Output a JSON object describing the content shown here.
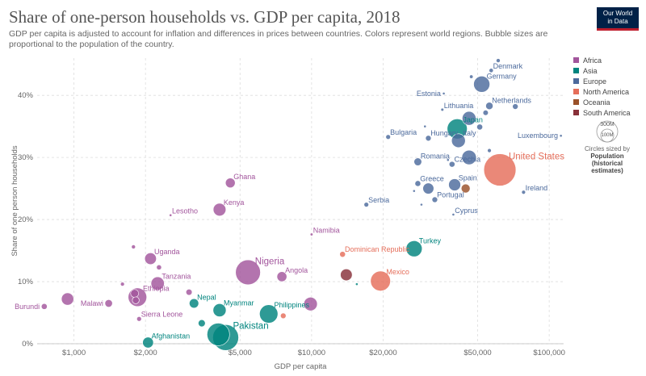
{
  "header": {
    "title": "Share of one-person households vs. GDP per capita, 2018",
    "subtitle": "GDP per capita is adjusted to account for inflation and differences in prices between countries. Colors represent world regions. Bubble sizes are proportional to the population of the country.",
    "logo_line1": "Our World",
    "logo_line2": "in Data"
  },
  "legend": {
    "items": [
      {
        "label": "Africa",
        "color": "#a2559c"
      },
      {
        "label": "Asia",
        "color": "#00847e"
      },
      {
        "label": "Europe",
        "color": "#4c6a9c"
      },
      {
        "label": "North America",
        "color": "#e56e5a"
      },
      {
        "label": "Oceania",
        "color": "#9a5129"
      },
      {
        "label": "South America",
        "color": "#883039"
      }
    ]
  },
  "size_legend": {
    "big": "300M",
    "small": "100M",
    "caption": "Circles sized by",
    "caption_bold1": "Population",
    "caption_bold2": "(historical estimates)"
  },
  "chart_data": {
    "type": "scatter",
    "title": "Share of one-person households vs. GDP per capita, 2018",
    "xlabel": "GDP per capita",
    "ylabel": "Share of one person households",
    "x_scale": "log",
    "xlim": [
      700,
      115000
    ],
    "ylim": [
      0,
      46
    ],
    "x_ticks": [
      1000,
      2000,
      5000,
      10000,
      20000,
      50000,
      100000
    ],
    "x_tick_labels": [
      "$1,000",
      "$2,000",
      "$5,000",
      "$10,000",
      "$20,000",
      "$50,000",
      "$100,000"
    ],
    "y_ticks": [
      0,
      10,
      20,
      30,
      40
    ],
    "y_tick_labels": [
      "0%",
      "10%",
      "20%",
      "30%",
      "40%"
    ],
    "points": [
      {
        "label": "Burundi",
        "region": "Africa",
        "x": 750,
        "y": 6.0,
        "pop": 11,
        "show": true,
        "anchor": "left"
      },
      {
        "label": "",
        "region": "Africa",
        "x": 940,
        "y": 7.2,
        "pop": 48,
        "show": false
      },
      {
        "label": "Malawi",
        "region": "Africa",
        "x": 1400,
        "y": 6.5,
        "pop": 18,
        "show": true,
        "anchor": "left"
      },
      {
        "label": "Ethiopia",
        "region": "Africa",
        "x": 1850,
        "y": 7.5,
        "pop": 109,
        "show": true,
        "anchor": "right"
      },
      {
        "label": "",
        "region": "Africa",
        "x": 1800,
        "y": 8.1,
        "pop": 20,
        "show": false
      },
      {
        "label": "",
        "region": "Africa",
        "x": 1820,
        "y": 7.0,
        "pop": 15,
        "show": false
      },
      {
        "label": "",
        "region": "Africa",
        "x": 1600,
        "y": 9.6,
        "pop": 5,
        "show": false
      },
      {
        "label": "Sierra Leone",
        "region": "Africa",
        "x": 1880,
        "y": 4.0,
        "pop": 7,
        "show": true,
        "anchor": "right"
      },
      {
        "label": "",
        "region": "Africa",
        "x": 1780,
        "y": 15.6,
        "pop": 5,
        "show": false
      },
      {
        "label": "Uganda",
        "region": "Africa",
        "x": 2100,
        "y": 13.7,
        "pop": 43,
        "show": true,
        "anchor": "right"
      },
      {
        "label": "",
        "region": "Africa",
        "x": 2280,
        "y": 12.3,
        "pop": 8,
        "show": false
      },
      {
        "label": "Tanzania",
        "region": "Africa",
        "x": 2250,
        "y": 9.7,
        "pop": 56,
        "show": true,
        "anchor": "right"
      },
      {
        "label": "",
        "region": "Africa",
        "x": 3050,
        "y": 8.3,
        "pop": 12,
        "show": false
      },
      {
        "label": "Lesotho",
        "region": "Africa",
        "x": 2550,
        "y": 20.7,
        "pop": 2,
        "show": true,
        "anchor": "right"
      },
      {
        "label": "Kenya",
        "region": "Africa",
        "x": 4100,
        "y": 21.6,
        "pop": 51,
        "show": true,
        "anchor": "right"
      },
      {
        "label": "Ghana",
        "region": "Africa",
        "x": 4550,
        "y": 25.9,
        "pop": 30,
        "show": true,
        "anchor": "right"
      },
      {
        "label": "Nigeria",
        "region": "Africa",
        "x": 5400,
        "y": 11.5,
        "pop": 196,
        "show": true,
        "anchor": "right-big"
      },
      {
        "label": "Angola",
        "region": "Africa",
        "x": 7500,
        "y": 10.8,
        "pop": 31,
        "show": true,
        "anchor": "right"
      },
      {
        "label": "",
        "region": "Africa",
        "x": 9900,
        "y": 6.4,
        "pop": 58,
        "show": false
      },
      {
        "label": "Namibia",
        "region": "Africa",
        "x": 10000,
        "y": 17.6,
        "pop": 2.5,
        "show": true,
        "anchor": "right"
      },
      {
        "label": "Afghanistan",
        "region": "Asia",
        "x": 2050,
        "y": 0.2,
        "pop": 37,
        "show": true,
        "anchor": "right"
      },
      {
        "label": "",
        "region": "Asia",
        "x": 3450,
        "y": 3.3,
        "pop": 16,
        "show": false
      },
      {
        "label": "Nepal",
        "region": "Asia",
        "x": 3200,
        "y": 6.5,
        "pop": 28,
        "show": true,
        "anchor": "right"
      },
      {
        "label": "Myanmar",
        "region": "Asia",
        "x": 4100,
        "y": 5.4,
        "pop": 54,
        "show": true,
        "anchor": "right"
      },
      {
        "label": "",
        "region": "Asia",
        "x": 4050,
        "y": 1.5,
        "pop": 161,
        "show": false
      },
      {
        "label": "Pakistan",
        "region": "Asia",
        "x": 4350,
        "y": 1.0,
        "pop": 212,
        "show": true,
        "anchor": "right-big"
      },
      {
        "label": "Philippines",
        "region": "Asia",
        "x": 6600,
        "y": 4.8,
        "pop": 107,
        "show": true,
        "anchor": "right"
      },
      {
        "label": "",
        "region": "Asia",
        "x": 15500,
        "y": 9.6,
        "pop": 1,
        "show": false
      },
      {
        "label": "Turkey",
        "region": "Asia",
        "x": 27000,
        "y": 15.3,
        "pop": 82,
        "show": true,
        "anchor": "right"
      },
      {
        "label": "Japan",
        "region": "Asia",
        "x": 41000,
        "y": 34.6,
        "pop": 127,
        "show": true,
        "anchor": "right"
      },
      {
        "label": "Estonia",
        "region": "Europe",
        "x": 36000,
        "y": 40.3,
        "pop": 1.3,
        "show": true,
        "anchor": "left"
      },
      {
        "label": "Lithuania",
        "region": "Europe",
        "x": 35500,
        "y": 37.7,
        "pop": 2.8,
        "show": true,
        "anchor": "right"
      },
      {
        "label": "Denmark",
        "region": "Europe",
        "x": 57000,
        "y": 44.0,
        "pop": 5.8,
        "show": true,
        "anchor": "right"
      },
      {
        "label": "",
        "region": "Europe",
        "x": 61000,
        "y": 45.6,
        "pop": 5.2,
        "show": false
      },
      {
        "label": "Germany",
        "region": "Europe",
        "x": 52000,
        "y": 41.8,
        "pop": 83,
        "show": true,
        "anchor": "right"
      },
      {
        "label": "",
        "region": "Europe",
        "x": 47000,
        "y": 43.0,
        "pop": 4,
        "show": false
      },
      {
        "label": "Netherlands",
        "region": "Europe",
        "x": 56000,
        "y": 38.3,
        "pop": 17,
        "show": true,
        "anchor": "right"
      },
      {
        "label": "",
        "region": "Europe",
        "x": 72000,
        "y": 38.2,
        "pop": 10,
        "show": false
      },
      {
        "label": "",
        "region": "Europe",
        "x": 46000,
        "y": 36.3,
        "pop": 60,
        "show": false
      },
      {
        "label": "",
        "region": "Europe",
        "x": 54000,
        "y": 37.2,
        "pop": 9,
        "show": false
      },
      {
        "label": "Luxembourg",
        "region": "Europe",
        "x": 112000,
        "y": 33.5,
        "pop": 0.6,
        "show": true,
        "anchor": "left"
      },
      {
        "label": "Bulgaria",
        "region": "Europe",
        "x": 21000,
        "y": 33.3,
        "pop": 7,
        "show": true,
        "anchor": "right"
      },
      {
        "label": "Hungary",
        "region": "Europe",
        "x": 31000,
        "y": 33.1,
        "pop": 10,
        "show": true,
        "anchor": "right"
      },
      {
        "label": "",
        "region": "Europe",
        "x": 30000,
        "y": 35.0,
        "pop": 2,
        "show": false
      },
      {
        "label": "Italy",
        "region": "Europe",
        "x": 41500,
        "y": 32.7,
        "pop": 60,
        "show": true,
        "anchor": "right"
      },
      {
        "label": "",
        "region": "Europe",
        "x": 51000,
        "y": 34.9,
        "pop": 11,
        "show": false
      },
      {
        "label": "Romania",
        "region": "Europe",
        "x": 28000,
        "y": 29.3,
        "pop": 19,
        "show": true,
        "anchor": "right"
      },
      {
        "label": "",
        "region": "Europe",
        "x": 37500,
        "y": 29.6,
        "pop": 2,
        "show": false
      },
      {
        "label": "Czechia",
        "region": "Europe",
        "x": 39000,
        "y": 28.9,
        "pop": 10.6,
        "show": true,
        "anchor": "right"
      },
      {
        "label": "",
        "region": "Europe",
        "x": 46000,
        "y": 30.0,
        "pop": 66,
        "show": false
      },
      {
        "label": "",
        "region": "Europe",
        "x": 56000,
        "y": 31.1,
        "pop": 4.8,
        "show": false
      },
      {
        "label": "Greece",
        "region": "Europe",
        "x": 28000,
        "y": 25.8,
        "pop": 10.7,
        "show": true,
        "anchor": "right"
      },
      {
        "label": "",
        "region": "Europe",
        "x": 31000,
        "y": 25.0,
        "pop": 38,
        "show": false
      },
      {
        "label": "Spain",
        "region": "Europe",
        "x": 40000,
        "y": 25.6,
        "pop": 46,
        "show": true,
        "anchor": "right"
      },
      {
        "label": "Portugal",
        "region": "Europe",
        "x": 33000,
        "y": 23.2,
        "pop": 10,
        "show": true,
        "anchor": "right"
      },
      {
        "label": "",
        "region": "Europe",
        "x": 27000,
        "y": 24.6,
        "pop": 2,
        "show": false
      },
      {
        "label": "Ireland",
        "region": "Europe",
        "x": 78000,
        "y": 24.4,
        "pop": 4.8,
        "show": true,
        "anchor": "right"
      },
      {
        "label": "Serbia",
        "region": "Europe",
        "x": 17000,
        "y": 22.4,
        "pop": 7,
        "show": true,
        "anchor": "right"
      },
      {
        "label": "",
        "region": "Europe",
        "x": 29000,
        "y": 22.4,
        "pop": 2,
        "show": false
      },
      {
        "label": "Cyprus",
        "region": "Europe",
        "x": 39500,
        "y": 20.8,
        "pop": 1.2,
        "show": true,
        "anchor": "right"
      },
      {
        "label": "United States",
        "region": "North America",
        "x": 62000,
        "y": 28.0,
        "pop": 327,
        "show": true,
        "anchor": "right-big"
      },
      {
        "label": "Dominican Republic",
        "region": "North America",
        "x": 13500,
        "y": 14.4,
        "pop": 10.6,
        "show": true,
        "anchor": "right"
      },
      {
        "label": "Mexico",
        "region": "North America",
        "x": 19500,
        "y": 10.1,
        "pop": 126,
        "show": true,
        "anchor": "right"
      },
      {
        "label": "",
        "region": "North America",
        "x": 7600,
        "y": 4.5,
        "pop": 10,
        "show": false
      },
      {
        "label": "",
        "region": "Oceania",
        "x": 44500,
        "y": 25.0,
        "pop": 25,
        "show": false
      },
      {
        "label": "",
        "region": "South America",
        "x": 14000,
        "y": 11.1,
        "pop": 44,
        "show": false
      }
    ]
  }
}
